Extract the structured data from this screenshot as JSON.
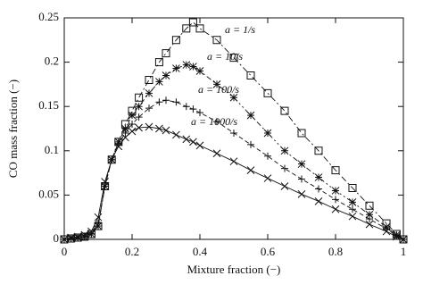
{
  "chart_data": {
    "type": "line",
    "xlabel": "Mixture fraction (−)",
    "ylabel": "CO mass fraction (−)",
    "x": [
      0,
      0.02,
      0.04,
      0.06,
      0.08,
      0.1,
      0.12,
      0.14,
      0.16,
      0.18,
      0.2,
      0.22,
      0.25,
      0.28,
      0.3,
      0.33,
      0.36,
      0.38,
      0.4,
      0.45,
      0.5,
      0.55,
      0.6,
      0.65,
      0.7,
      0.75,
      0.8,
      0.85,
      0.9,
      0.95,
      0.98,
      1
    ],
    "series": [
      {
        "name": "a = 1/s",
        "color": "#111111",
        "marker": "square",
        "dash": "7 3 2 3",
        "values": [
          0,
          0.001,
          0.002,
          0.003,
          0.006,
          0.015,
          0.06,
          0.09,
          0.11,
          0.13,
          0.145,
          0.16,
          0.18,
          0.2,
          0.21,
          0.225,
          0.238,
          0.245,
          0.238,
          0.225,
          0.205,
          0.185,
          0.165,
          0.145,
          0.12,
          0.1,
          0.078,
          0.058,
          0.038,
          0.018,
          0.006,
          0
        ]
      },
      {
        "name": "a = 10/s",
        "color": "#111111",
        "marker": "asterisk",
        "dash": "6 3 2 3 2 3",
        "values": [
          0,
          0.001,
          0.002,
          0.003,
          0.006,
          0.015,
          0.06,
          0.09,
          0.11,
          0.125,
          0.14,
          0.15,
          0.165,
          0.178,
          0.185,
          0.193,
          0.197,
          0.195,
          0.19,
          0.175,
          0.16,
          0.14,
          0.12,
          0.1,
          0.085,
          0.07,
          0.055,
          0.042,
          0.028,
          0.014,
          0.005,
          0
        ]
      },
      {
        "name": "a = 100/s",
        "color": "#111111",
        "marker": "plus",
        "dash": "5 3",
        "values": [
          0,
          0.001,
          0.002,
          0.003,
          0.006,
          0.018,
          0.06,
          0.09,
          0.108,
          0.12,
          0.13,
          0.138,
          0.148,
          0.155,
          0.157,
          0.155,
          0.15,
          0.147,
          0.143,
          0.133,
          0.12,
          0.107,
          0.094,
          0.08,
          0.068,
          0.057,
          0.045,
          0.034,
          0.023,
          0.012,
          0.004,
          0
        ]
      },
      {
        "name": "a = 1000/s",
        "color": "#111111",
        "marker": "cross",
        "dash": "none",
        "values": [
          0,
          0.002,
          0.003,
          0.005,
          0.009,
          0.025,
          0.065,
          0.09,
          0.105,
          0.115,
          0.122,
          0.126,
          0.127,
          0.125,
          0.123,
          0.118,
          0.113,
          0.11,
          0.106,
          0.097,
          0.088,
          0.078,
          0.069,
          0.06,
          0.051,
          0.043,
          0.034,
          0.026,
          0.017,
          0.009,
          0.003,
          0
        ]
      }
    ],
    "xlim": [
      0,
      1
    ],
    "xticks": [
      0,
      0.2,
      0.4,
      0.6,
      0.8,
      1
    ],
    "ylim": [
      0,
      0.25
    ],
    "yticks": [
      0,
      0.05,
      0.1,
      0.15,
      0.2,
      0.25
    ]
  }
}
